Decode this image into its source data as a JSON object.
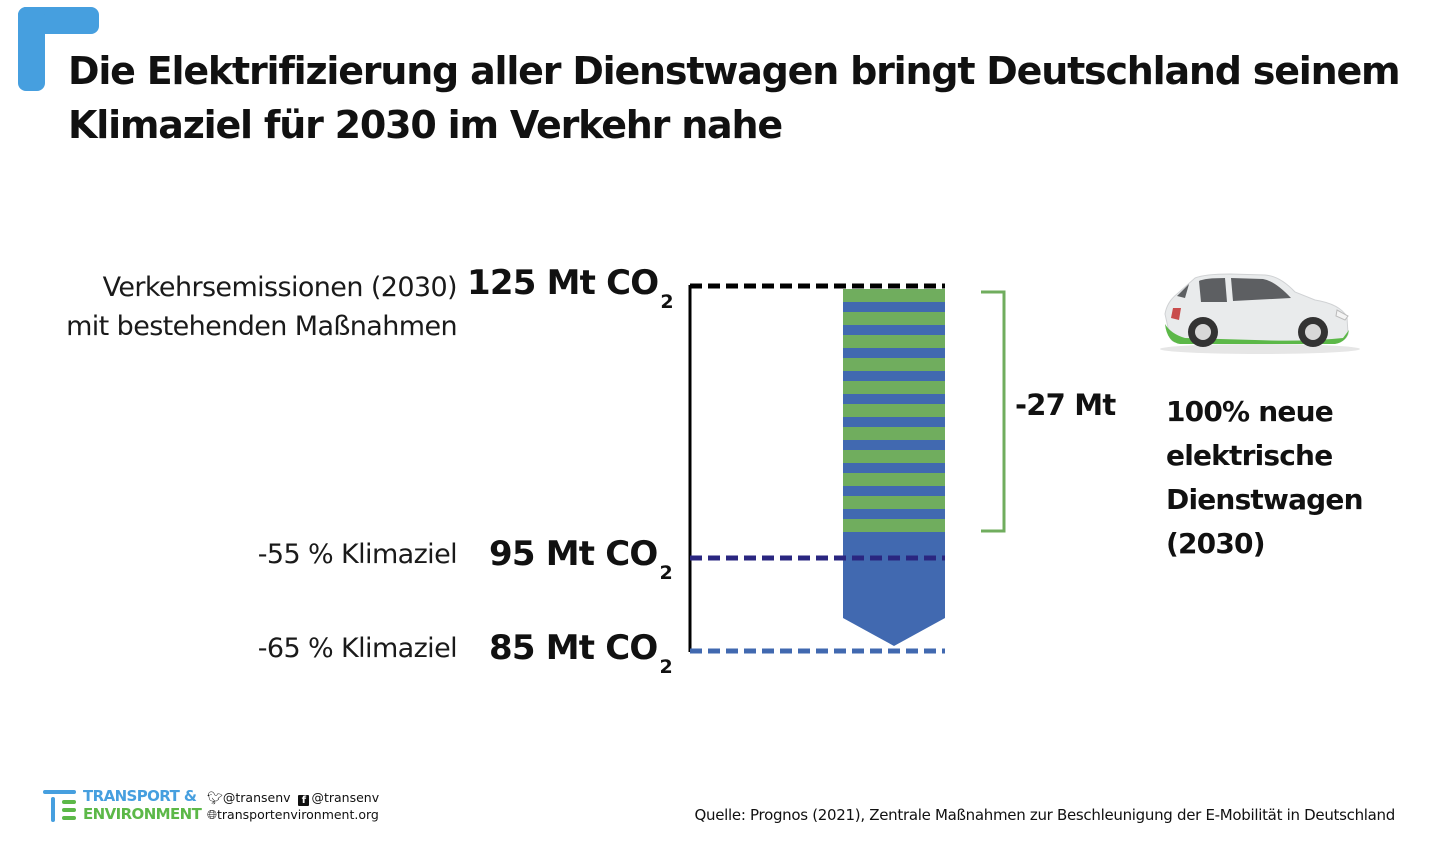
{
  "title": "Die Elektrifizierung aller Dienstwagen bringt Deutschland seinem Klimaziel für 2030 im Verkehr nahe",
  "colors": {
    "accent": "#469fdf",
    "green": "#70ad5e",
    "blue": "#4169b0",
    "navy": "#2a2680",
    "black": "#000000"
  },
  "chart_data": {
    "type": "bar",
    "title": "Die Elektrifizierung aller Dienstwagen bringt Deutschland seinem Klimaziel für 2030 im Verkehr nahe",
    "unit": "Mt CO2",
    "levels": [
      {
        "label_line1": "Verkehrsemissionen (2030)",
        "label_line2": "mit bestehenden Maßnahmen",
        "value": 125,
        "value_text": "125 Mt CO",
        "sub": "2"
      },
      {
        "label_line1": "-55 % Klimaziel",
        "value": 95,
        "value_text": "95 Mt CO",
        "sub": "2"
      },
      {
        "label_line1": "-65 % Klimaziel",
        "value": 85,
        "value_text": "85 Mt CO",
        "sub": "2"
      }
    ],
    "reduction": {
      "value": -27,
      "text": "-27 Mt",
      "from": 125,
      "to": 98
    },
    "annotation": [
      "100% neue",
      "elektrische",
      "Dienstwagen",
      "(2030)"
    ]
  },
  "footer": {
    "brand_line1": "TRANSPORT &",
    "brand_line2": "ENVIRONMENT",
    "twitter": "@transenv",
    "facebook": "@transenv",
    "website": "transportenvironment.org",
    "source": "Quelle: Prognos (2021), Zentrale Maßnahmen zur Beschleunigung der E-Mobilität in Deutschland"
  }
}
